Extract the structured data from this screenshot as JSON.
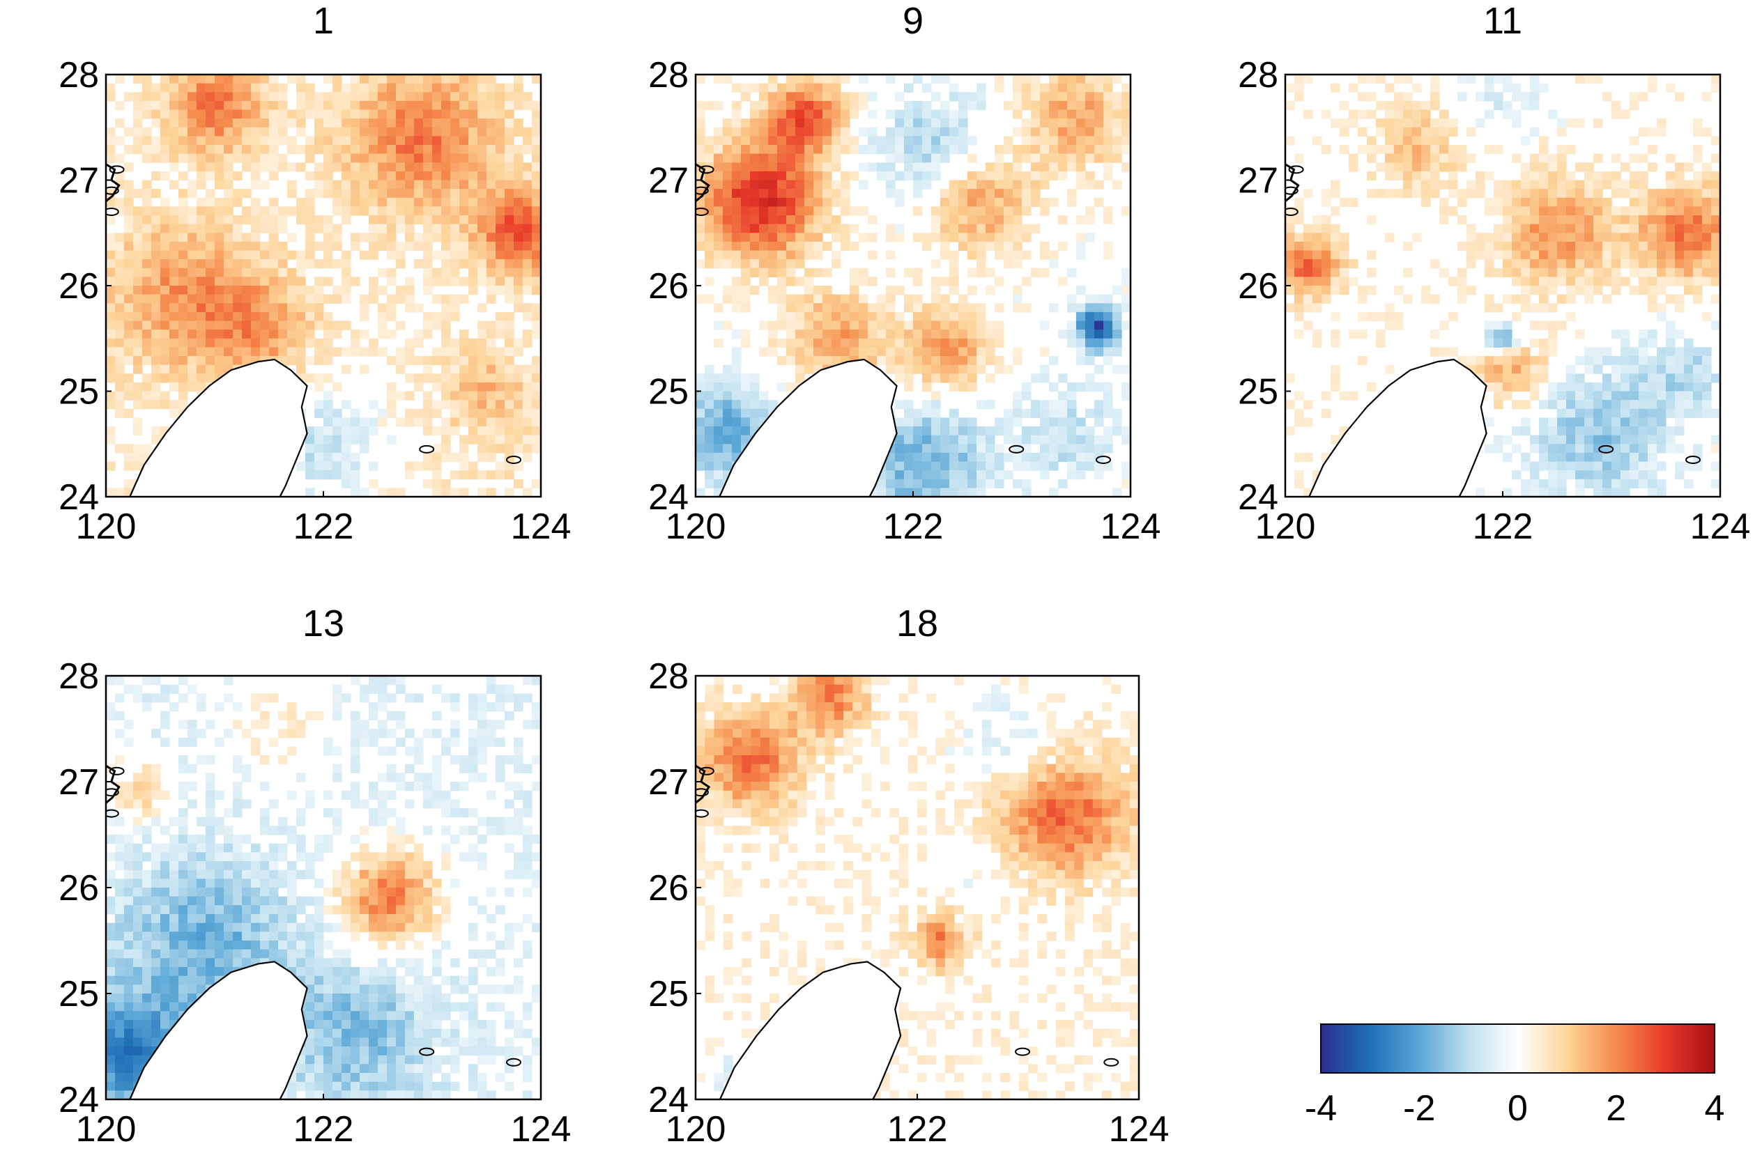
{
  "chart_data": {
    "type": "heatmap",
    "description_note": "Five gridded anomaly maps over lon 120-124, lat 24-28 with a shared diverging colorbar.",
    "colormap": {
      "name": "diverging blue-white-red",
      "range": [
        -4,
        4
      ],
      "stops": [
        {
          "value": -4,
          "color": "#2b2f8f"
        },
        {
          "value": -3,
          "color": "#1f6fb5"
        },
        {
          "value": -2,
          "color": "#5aa6d6"
        },
        {
          "value": -1,
          "color": "#bfe0ef"
        },
        {
          "value": 0,
          "color": "#ffffff"
        },
        {
          "value": 1,
          "color": "#fdd49a"
        },
        {
          "value": 2,
          "color": "#f58b4c"
        },
        {
          "value": 3,
          "color": "#e8392a"
        },
        {
          "value": 4,
          "color": "#a50f15"
        }
      ],
      "tick_labels": [
        "-4",
        "-2",
        "0",
        "2",
        "4"
      ],
      "tick_values": [
        -4,
        -2,
        0,
        2,
        4
      ]
    },
    "axes": {
      "xlim": [
        120,
        124
      ],
      "ylim": [
        24,
        28
      ],
      "x_ticks": [
        120,
        122,
        124
      ],
      "y_ticks": [
        24,
        25,
        26,
        27,
        28
      ],
      "x_tick_labels": [
        "120",
        "122",
        "124"
      ],
      "y_tick_labels": [
        "24",
        "25",
        "26",
        "27",
        "28"
      ]
    },
    "panels": [
      {
        "title": "1",
        "background": 0.6,
        "blobs": [
          {
            "lon": 121.0,
            "lat": 27.7,
            "r": 0.45,
            "v": 1.9
          },
          {
            "lon": 122.9,
            "lat": 27.4,
            "r": 0.7,
            "v": 1.9
          },
          {
            "lon": 123.8,
            "lat": 26.5,
            "r": 0.4,
            "v": 2.4
          },
          {
            "lon": 120.7,
            "lat": 25.9,
            "r": 0.7,
            "v": 1.5
          },
          {
            "lon": 121.4,
            "lat": 25.6,
            "r": 0.5,
            "v": 1.3
          },
          {
            "lon": 123.5,
            "lat": 25.0,
            "r": 0.4,
            "v": 1.0
          },
          {
            "lon": 122.0,
            "lat": 24.5,
            "r": 0.5,
            "v": -1.2
          },
          {
            "lon": 123.6,
            "lat": 24.4,
            "r": 0.4,
            "v": 0.2
          }
        ]
      },
      {
        "title": "9",
        "background": 0.0,
        "blobs": [
          {
            "lon": 120.6,
            "lat": 26.8,
            "r": 0.55,
            "v": 3.3
          },
          {
            "lon": 121.0,
            "lat": 27.6,
            "r": 0.35,
            "v": 2.6
          },
          {
            "lon": 122.2,
            "lat": 27.3,
            "r": 0.55,
            "v": -1.3
          },
          {
            "lon": 123.5,
            "lat": 27.6,
            "r": 0.5,
            "v": 1.6
          },
          {
            "lon": 122.6,
            "lat": 26.8,
            "r": 0.5,
            "v": 1.8
          },
          {
            "lon": 121.3,
            "lat": 25.5,
            "r": 0.45,
            "v": 1.7
          },
          {
            "lon": 122.3,
            "lat": 25.4,
            "r": 0.4,
            "v": 1.9
          },
          {
            "lon": 123.7,
            "lat": 25.6,
            "r": 0.2,
            "v": -3.6
          },
          {
            "lon": 120.3,
            "lat": 24.6,
            "r": 0.45,
            "v": -2.0
          },
          {
            "lon": 122.1,
            "lat": 24.3,
            "r": 0.6,
            "v": -1.8
          },
          {
            "lon": 123.4,
            "lat": 24.6,
            "r": 0.45,
            "v": -1.0
          }
        ]
      },
      {
        "title": "11",
        "background": 0.2,
        "blobs": [
          {
            "lon": 122.5,
            "lat": 26.5,
            "r": 0.5,
            "v": 1.8
          },
          {
            "lon": 123.7,
            "lat": 26.5,
            "r": 0.45,
            "v": 2.2
          },
          {
            "lon": 120.2,
            "lat": 26.2,
            "r": 0.3,
            "v": 2.3
          },
          {
            "lon": 121.2,
            "lat": 27.3,
            "r": 0.4,
            "v": 1.1
          },
          {
            "lon": 122.1,
            "lat": 25.2,
            "r": 0.35,
            "v": 1.5
          },
          {
            "lon": 122.0,
            "lat": 25.5,
            "r": 0.15,
            "v": -2.2
          },
          {
            "lon": 122.9,
            "lat": 24.6,
            "r": 0.7,
            "v": -1.5
          },
          {
            "lon": 123.7,
            "lat": 25.2,
            "r": 0.4,
            "v": -1.0
          },
          {
            "lon": 122.0,
            "lat": 27.8,
            "r": 0.4,
            "v": -0.6
          }
        ]
      },
      {
        "title": "13",
        "background": -0.6,
        "blobs": [
          {
            "lon": 122.6,
            "lat": 25.9,
            "r": 0.45,
            "v": 2.5
          },
          {
            "lon": 120.9,
            "lat": 25.5,
            "r": 0.8,
            "v": -1.5
          },
          {
            "lon": 120.2,
            "lat": 24.4,
            "r": 0.55,
            "v": -2.4
          },
          {
            "lon": 122.3,
            "lat": 24.6,
            "r": 0.7,
            "v": -1.3
          },
          {
            "lon": 121.6,
            "lat": 27.5,
            "r": 0.55,
            "v": 0.6
          },
          {
            "lon": 120.3,
            "lat": 26.9,
            "r": 0.3,
            "v": 1.2
          }
        ]
      },
      {
        "title": "18",
        "background": 0.3,
        "blobs": [
          {
            "lon": 120.5,
            "lat": 27.2,
            "r": 0.45,
            "v": 2.2
          },
          {
            "lon": 121.2,
            "lat": 27.8,
            "r": 0.35,
            "v": 2.0
          },
          {
            "lon": 123.3,
            "lat": 26.7,
            "r": 0.6,
            "v": 2.4
          },
          {
            "lon": 122.2,
            "lat": 25.5,
            "r": 0.25,
            "v": 2.0
          },
          {
            "lon": 122.9,
            "lat": 27.3,
            "r": 0.5,
            "v": -0.8
          },
          {
            "lon": 122.6,
            "lat": 26.2,
            "r": 0.4,
            "v": -0.4
          },
          {
            "lon": 120.4,
            "lat": 24.2,
            "r": 0.35,
            "v": -0.5
          }
        ]
      }
    ]
  }
}
